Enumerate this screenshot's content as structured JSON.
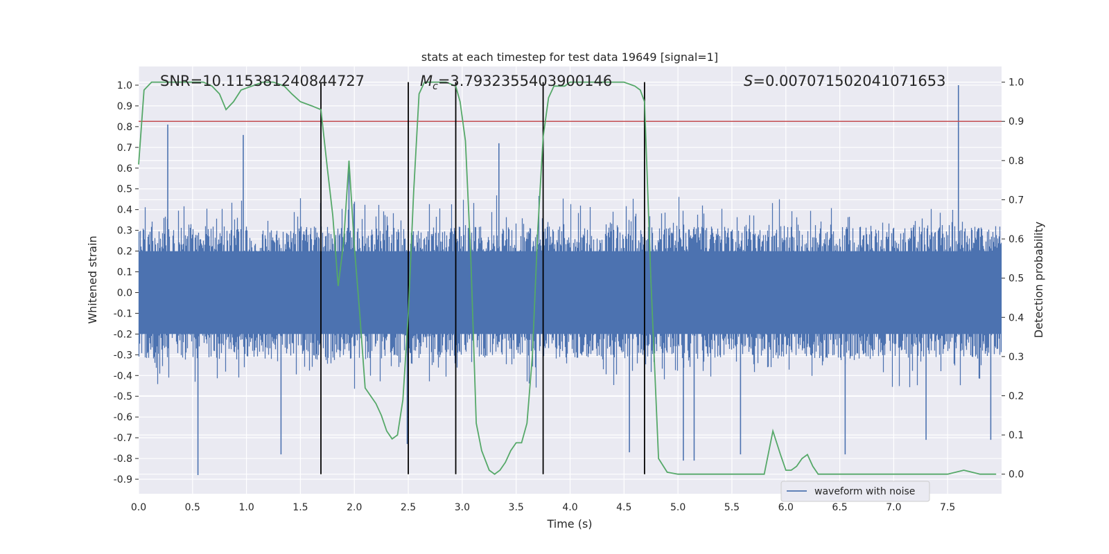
{
  "chart_data": {
    "type": "line",
    "title": "stats at each timestep for test data 19649 [signal=1]",
    "xlabel": "Time (s)",
    "ylabel": "Whitened strain",
    "y2label": "Detection probability",
    "xlim": [
      0.0,
      8.0
    ],
    "ylim": [
      -0.97,
      1.09
    ],
    "y2lim": [
      -0.05,
      1.04
    ],
    "xticks": [
      "0.0",
      "0.5",
      "1.0",
      "1.5",
      "2.0",
      "2.5",
      "3.0",
      "3.5",
      "4.0",
      "4.5",
      "5.0",
      "5.5",
      "6.0",
      "6.5",
      "7.0",
      "7.5"
    ],
    "yticks": [
      "1.0",
      "0.9",
      "0.8",
      "0.7",
      "0.6",
      "0.5",
      "0.4",
      "0.3",
      "0.2",
      "0.1",
      "0.0",
      "-0.1",
      "-0.2",
      "-0.3",
      "-0.4",
      "-0.5",
      "-0.6",
      "-0.7",
      "-0.8",
      "-0.9"
    ],
    "y2ticks": [
      "1.0",
      "0.9",
      "0.8",
      "0.7",
      "0.6",
      "0.5",
      "0.4",
      "0.3",
      "0.2",
      "0.1",
      "0.0"
    ],
    "annotations": {
      "snr": "SNR=10.115381240844727",
      "mc_symbol": "M",
      "mc_sub": "c",
      "mc_value": "=3.7932355403900146",
      "s_symbol": "S",
      "s_value": "=0.007071502041071653"
    },
    "threshold": 0.9,
    "vertical_lines": [
      1.69,
      2.5,
      2.94,
      3.75,
      4.69
    ],
    "series": [
      {
        "name": "waveform with noise",
        "axis": "left",
        "color": "#4c72b0",
        "kind": "noise",
        "typical_max": 0.42,
        "typical_min": -0.42,
        "peaks": [
          {
            "x": 0.27,
            "y": 0.81
          },
          {
            "x": 0.55,
            "y": -0.88
          },
          {
            "x": 0.97,
            "y": 0.76
          },
          {
            "x": 1.32,
            "y": -0.78
          },
          {
            "x": 1.95,
            "y": 0.62
          },
          {
            "x": 2.49,
            "y": -0.73
          },
          {
            "x": 3.34,
            "y": 0.72
          },
          {
            "x": 4.55,
            "y": -0.77
          },
          {
            "x": 5.05,
            "y": -0.81
          },
          {
            "x": 5.15,
            "y": -0.81
          },
          {
            "x": 5.58,
            "y": -0.78
          },
          {
            "x": 6.55,
            "y": -0.78
          },
          {
            "x": 7.6,
            "y": 1.0
          },
          {
            "x": 7.3,
            "y": -0.71
          },
          {
            "x": 7.9,
            "y": -0.71
          }
        ]
      },
      {
        "name": "detection probability",
        "axis": "right",
        "color": "#55a868",
        "x": [
          0.0,
          0.05,
          0.12,
          0.2,
          0.3,
          0.4,
          0.5,
          0.6,
          0.68,
          0.75,
          0.81,
          0.88,
          0.95,
          1.05,
          1.15,
          1.25,
          1.35,
          1.42,
          1.5,
          1.6,
          1.69,
          1.75,
          1.8,
          1.85,
          1.9,
          1.95,
          2.0,
          2.05,
          2.1,
          2.15,
          2.2,
          2.25,
          2.3,
          2.35,
          2.4,
          2.45,
          2.5,
          2.55,
          2.6,
          2.65,
          2.75,
          2.85,
          2.94,
          2.98,
          3.03,
          3.08,
          3.13,
          3.18,
          3.25,
          3.3,
          3.35,
          3.4,
          3.45,
          3.5,
          3.55,
          3.6,
          3.65,
          3.7,
          3.75,
          3.8,
          3.85,
          3.9,
          3.95,
          4.0,
          4.05,
          4.1,
          4.2,
          4.3,
          4.4,
          4.5,
          4.6,
          4.65,
          4.69,
          4.75,
          4.82,
          4.9,
          5.0,
          5.1,
          5.2,
          5.3,
          5.4,
          5.5,
          5.6,
          5.7,
          5.8,
          5.88,
          5.95,
          6.0,
          6.05,
          6.1,
          6.15,
          6.2,
          6.25,
          6.3,
          6.4,
          6.5,
          6.7,
          7.0,
          7.3,
          7.5,
          7.65,
          7.8,
          7.95
        ],
        "values": [
          0.79,
          0.98,
          1.0,
          1.0,
          1.0,
          1.0,
          1.0,
          1.0,
          0.99,
          0.97,
          0.93,
          0.95,
          0.98,
          0.99,
          1.0,
          1.0,
          0.99,
          0.97,
          0.95,
          0.94,
          0.93,
          0.78,
          0.66,
          0.48,
          0.59,
          0.8,
          0.58,
          0.41,
          0.22,
          0.2,
          0.18,
          0.15,
          0.11,
          0.09,
          0.1,
          0.19,
          0.41,
          0.72,
          0.97,
          1.0,
          1.0,
          1.0,
          0.99,
          0.95,
          0.85,
          0.55,
          0.13,
          0.06,
          0.01,
          0.0,
          0.01,
          0.03,
          0.06,
          0.08,
          0.08,
          0.13,
          0.3,
          0.62,
          0.86,
          0.96,
          0.99,
          0.99,
          0.99,
          1.0,
          1.0,
          1.0,
          1.0,
          1.0,
          1.0,
          1.0,
          0.99,
          0.98,
          0.95,
          0.49,
          0.04,
          0.005,
          0.0,
          0.0,
          0.0,
          0.0,
          0.0,
          0.0,
          0.0,
          0.0,
          0.0,
          0.11,
          0.05,
          0.01,
          0.01,
          0.02,
          0.04,
          0.05,
          0.02,
          0.0,
          0.0,
          0.0,
          0.0,
          0.0,
          0.0,
          0.0,
          0.01,
          0.0,
          0.0
        ]
      }
    ],
    "legend": {
      "position": "bottom-right",
      "entries": [
        "waveform with noise"
      ]
    }
  }
}
